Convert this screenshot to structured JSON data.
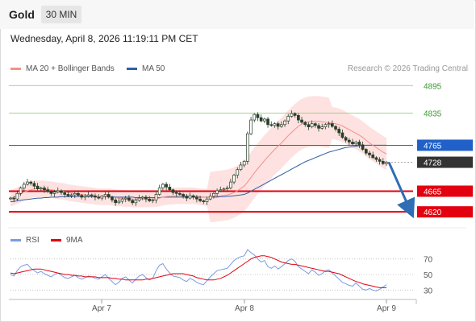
{
  "header": {
    "instrument": "Gold",
    "timeframe": "30 MIN",
    "datetime": "Wednesday, April 8, 2026 11:19:11 PM CET"
  },
  "legend": {
    "ma20_label": "MA 20 + Bollinger Bands",
    "ma50_label": "MA 50",
    "copyright": "Research © 2026 Trading Central"
  },
  "rsi_legend": {
    "rsi_label": "RSI",
    "ma_label": "9MA"
  },
  "colors": {
    "ma20": "#f4908a",
    "bollinger_fill": "#fde2e1",
    "ma50": "#2f5fa7",
    "candle": "#2a3f2a",
    "level_green": "#8dc46d",
    "level_green_text": "#3b9a2f",
    "level_blue": "#2060c8",
    "level_red": "#e3000f",
    "current_price_tag": "#333333",
    "arrow": "#2f6db5",
    "rsi": "#7b9be0",
    "rsi_ma": "#e3000f"
  },
  "chart_data": [
    {
      "type": "candlestick",
      "title": "Gold 30 MIN",
      "x_tick_labels": [
        "Apr 7",
        "Apr 8",
        "Apr 9"
      ],
      "ylim": [
        4580,
        4920
      ],
      "levels": [
        {
          "value": 4895,
          "label": "4895",
          "kind": "resistance"
        },
        {
          "value": 4835,
          "label": "4835",
          "kind": "resistance"
        },
        {
          "value": 4765,
          "label": "4765",
          "kind": "pivot"
        },
        {
          "value": 4728,
          "label": "4728",
          "kind": "last"
        },
        {
          "value": 4665,
          "label": "4665",
          "kind": "target"
        },
        {
          "value": 4620,
          "label": "4620",
          "kind": "target"
        }
      ],
      "forecast_arrow": {
        "from": 4728,
        "to": 4625,
        "direction": "down"
      },
      "close": [
        4650,
        4648,
        4660,
        4672,
        4680,
        4685,
        4682,
        4676,
        4670,
        4672,
        4668,
        4664,
        4660,
        4663,
        4666,
        4662,
        4658,
        4655,
        4657,
        4660,
        4656,
        4652,
        4654,
        4657,
        4655,
        4652,
        4650,
        4654,
        4658,
        4652,
        4646,
        4640,
        4643,
        4648,
        4650,
        4645,
        4640,
        4645,
        4650,
        4652,
        4648,
        4644,
        4646,
        4658,
        4672,
        4680,
        4674,
        4668,
        4662,
        4660,
        4658,
        4654,
        4650,
        4655,
        4652,
        4648,
        4644,
        4642,
        4648,
        4654,
        4660,
        4666,
        4668,
        4670,
        4672,
        4685,
        4700,
        4712,
        4722,
        4730,
        4790,
        4820,
        4832,
        4825,
        4818,
        4822,
        4810,
        4808,
        4812,
        4806,
        4810,
        4818,
        4828,
        4834,
        4830,
        4820,
        4815,
        4810,
        4805,
        4812,
        4808,
        4802,
        4805,
        4810,
        4812,
        4806,
        4800,
        4792,
        4782,
        4776,
        4772,
        4768,
        4772,
        4766,
        4756,
        4748,
        4744,
        4738,
        4734,
        4730,
        4725,
        4728
      ],
      "ma20": [
        4650,
        4652,
        4655,
        4659,
        4663,
        4666,
        4668,
        4670,
        4670,
        4670,
        4670,
        4669,
        4668,
        4667,
        4666,
        4665,
        4664,
        4662,
        4661,
        4660,
        4659,
        4658,
        4657,
        4656,
        4655,
        4654,
        4653,
        4653,
        4653,
        4653,
        4652,
        4651,
        4650,
        4650,
        4649,
        4649,
        4648,
        4648,
        4648,
        4648,
        4648,
        4648,
        4648,
        4649,
        4650,
        4652,
        4653,
        4654,
        4654,
        4655,
        4655,
        4655,
        4655,
        4655,
        4655,
        4654,
        4653,
        4652,
        4652,
        4652,
        4653,
        4654,
        4655,
        4656,
        4657,
        4659,
        4662,
        4666,
        4671,
        4676,
        4685,
        4695,
        4705,
        4714,
        4723,
        4732,
        4740,
        4748,
        4756,
        4763,
        4770,
        4778,
        4786,
        4793,
        4800,
        4806,
        4811,
        4814,
        4816,
        4817,
        4817,
        4817,
        4816,
        4815,
        4814,
        4813,
        4812,
        4810,
        4807,
        4803,
        4799,
        4795,
        4791,
        4787,
        4782,
        4776,
        4770,
        4765,
        4760,
        4755,
        4750,
        4746
      ],
      "ma50": [
        4642,
        4643,
        4644,
        4645,
        4646,
        4647,
        4648,
        4649,
        4650,
        4650,
        4651,
        4651,
        4652,
        4652,
        4652,
        4653,
        4653,
        4653,
        4653,
        4653,
        4653,
        4653,
        4653,
        4653,
        4653,
        4653,
        4653,
        4653,
        4653,
        4653,
        4653,
        4652,
        4652,
        4652,
        4652,
        4652,
        4652,
        4651,
        4651,
        4651,
        4651,
        4651,
        4651,
        4651,
        4651,
        4652,
        4652,
        4652,
        4652,
        4652,
        4652,
        4652,
        4652,
        4652,
        4652,
        4652,
        4652,
        4652,
        4652,
        4652,
        4652,
        4652,
        4653,
        4653,
        4654,
        4654,
        4655,
        4656,
        4657,
        4658,
        4661,
        4665,
        4669,
        4673,
        4677,
        4681,
        4685,
        4689,
        4693,
        4697,
        4701,
        4705,
        4709,
        4713,
        4717,
        4721,
        4725,
        4729,
        4732,
        4735,
        4738,
        4741,
        4744,
        4747,
        4750,
        4752,
        4754,
        4756,
        4758,
        4760,
        4761,
        4762,
        4763,
        4764,
        4764,
        4765,
        4765,
        4765,
        4765,
        4765,
        4765,
        4765
      ]
    },
    {
      "type": "line",
      "title": "RSI",
      "y_ticks": [
        70,
        50,
        30
      ],
      "ylim": [
        20,
        80
      ],
      "series": [
        {
          "name": "RSI",
          "values": [
            50,
            48,
            55,
            60,
            62,
            63,
            58,
            55,
            52,
            54,
            51,
            49,
            47,
            50,
            52,
            49,
            46,
            45,
            47,
            49,
            46,
            44,
            46,
            48,
            47,
            45,
            44,
            47,
            50,
            45,
            41,
            37,
            40,
            45,
            47,
            43,
            39,
            44,
            48,
            50,
            46,
            43,
            45,
            55,
            62,
            64,
            57,
            52,
            48,
            47,
            46,
            43,
            41,
            45,
            43,
            40,
            38,
            37,
            42,
            47,
            51,
            55,
            56,
            57,
            58,
            63,
            68,
            71,
            73,
            74,
            82,
            78,
            75,
            70,
            66,
            68,
            60,
            58,
            61,
            57,
            60,
            64,
            68,
            70,
            67,
            60,
            57,
            54,
            51,
            56,
            53,
            49,
            51,
            55,
            56,
            52,
            48,
            44,
            40,
            38,
            36,
            35,
            39,
            35,
            31,
            30,
            32,
            30,
            29,
            31,
            34,
            37
          ]
        },
        {
          "name": "9MA",
          "values": [
            52,
            51,
            52,
            53,
            54,
            55,
            56,
            57,
            57,
            57,
            56,
            55,
            54,
            53,
            52,
            51,
            50,
            50,
            49,
            49,
            48,
            48,
            47,
            47,
            47,
            47,
            46,
            46,
            46,
            46,
            45,
            45,
            44,
            44,
            43,
            43,
            43,
            43,
            43,
            43,
            44,
            44,
            45,
            46,
            47,
            48,
            49,
            50,
            51,
            51,
            51,
            51,
            50,
            49,
            48,
            46,
            45,
            44,
            43,
            43,
            43,
            44,
            45,
            47,
            49,
            52,
            55,
            58,
            61,
            64,
            67,
            70,
            72,
            73,
            74,
            74,
            73,
            72,
            70,
            68,
            66,
            65,
            64,
            63,
            63,
            62,
            61,
            60,
            59,
            58,
            57,
            56,
            55,
            54,
            54,
            53,
            52,
            51,
            49,
            47,
            45,
            43,
            41,
            40,
            38,
            37,
            36,
            35,
            34,
            33,
            33,
            33
          ]
        }
      ]
    }
  ]
}
